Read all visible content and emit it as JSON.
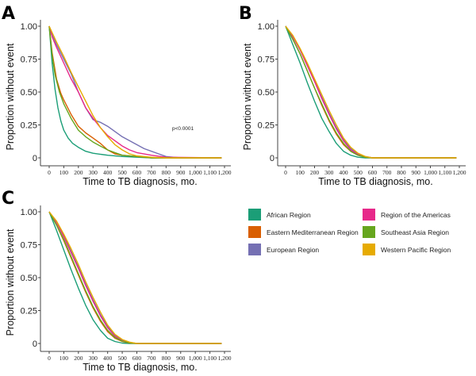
{
  "chart_data": [
    {
      "type": "line",
      "panel": "A",
      "title": "",
      "xlabel": "Time to TB diagnosis, mo.",
      "ylabel": "Proportion without event",
      "xlim": [
        0,
        1200
      ],
      "ylim": [
        0,
        1
      ],
      "x_ticks": [
        0,
        100,
        200,
        300,
        400,
        500,
        600,
        700,
        800,
        900,
        1000,
        1100,
        1200
      ],
      "x_tick_labels": [
        "0",
        "100",
        "200",
        "300",
        "400",
        "500",
        "600",
        "700",
        "800",
        "900",
        "1,000",
        "1,100",
        "1,200"
      ],
      "y_ticks": [
        0,
        0.25,
        0.5,
        0.75,
        1.0
      ],
      "y_tick_labels": [
        "0",
        "0.25",
        "0.50",
        "0.75",
        "1.00"
      ],
      "grid": false,
      "annotation": "p<0.0001",
      "series": [
        {
          "name": "African Region",
          "x": [
            0,
            20,
            40,
            60,
            80,
            100,
            130,
            160,
            200,
            250,
            300,
            400,
            500,
            600,
            700,
            1180
          ],
          "y": [
            1.0,
            0.72,
            0.52,
            0.38,
            0.28,
            0.21,
            0.15,
            0.11,
            0.08,
            0.05,
            0.035,
            0.02,
            0.01,
            0.005,
            0.0,
            0.0
          ]
        },
        {
          "name": "Eastern Mediterranean Region",
          "x": [
            0,
            20,
            50,
            80,
            100,
            150,
            200,
            250,
            300,
            350,
            400,
            450,
            500,
            600,
            700,
            1180
          ],
          "y": [
            1.0,
            0.8,
            0.6,
            0.49,
            0.44,
            0.33,
            0.24,
            0.19,
            0.15,
            0.11,
            0.06,
            0.03,
            0.02,
            0.01,
            0.0,
            0.0
          ]
        },
        {
          "name": "European Region",
          "x": [
            0,
            50,
            100,
            150,
            200,
            250,
            300,
            350,
            400,
            450,
            500,
            550,
            600,
            650,
            700,
            750,
            800,
            850,
            900,
            1180
          ],
          "y": [
            1.0,
            0.86,
            0.75,
            0.64,
            0.5,
            0.38,
            0.29,
            0.27,
            0.24,
            0.2,
            0.16,
            0.13,
            0.1,
            0.07,
            0.05,
            0.03,
            0.01,
            0.005,
            0.0,
            0.0
          ]
        },
        {
          "name": "Region of the Americas",
          "x": [
            0,
            20,
            50,
            100,
            150,
            200,
            250,
            300,
            350,
            400,
            450,
            500,
            550,
            600,
            700,
            800,
            1180
          ],
          "y": [
            1.0,
            0.92,
            0.84,
            0.72,
            0.6,
            0.5,
            0.38,
            0.3,
            0.23,
            0.17,
            0.13,
            0.09,
            0.06,
            0.04,
            0.02,
            0.005,
            0.0
          ]
        },
        {
          "name": "Southeast Asia Region",
          "x": [
            0,
            20,
            40,
            70,
            100,
            150,
            200,
            250,
            300,
            350,
            400,
            450,
            500,
            600,
            700,
            1180
          ],
          "y": [
            1.0,
            0.78,
            0.63,
            0.5,
            0.41,
            0.3,
            0.21,
            0.16,
            0.12,
            0.09,
            0.06,
            0.04,
            0.02,
            0.01,
            0.0,
            0.0
          ]
        },
        {
          "name": "Western Pacific Region",
          "x": [
            0,
            50,
            100,
            150,
            200,
            250,
            300,
            350,
            400,
            450,
            500,
            550,
            600,
            700,
            800,
            1180
          ],
          "y": [
            1.0,
            0.88,
            0.77,
            0.65,
            0.54,
            0.43,
            0.32,
            0.23,
            0.16,
            0.1,
            0.06,
            0.03,
            0.015,
            0.005,
            0.0,
            0.0
          ]
        }
      ]
    },
    {
      "type": "line",
      "panel": "B",
      "title": "",
      "xlabel": "Time to TB diagnosis, mo.",
      "ylabel": "Proportion without event",
      "xlim": [
        0,
        1200
      ],
      "ylim": [
        0,
        1
      ],
      "x_ticks": [
        0,
        100,
        200,
        300,
        400,
        500,
        600,
        700,
        800,
        900,
        1000,
        1100,
        1200
      ],
      "x_tick_labels": [
        "0",
        "100",
        "200",
        "300",
        "400",
        "500",
        "600",
        "700",
        "800",
        "900",
        "1,000",
        "1,100",
        "1,200"
      ],
      "y_ticks": [
        0,
        0.25,
        0.5,
        0.75,
        1.0
      ],
      "y_tick_labels": [
        "0",
        "0.25",
        "0.50",
        "0.75",
        "1.00"
      ],
      "grid": false,
      "series": [
        {
          "name": "African Region",
          "x": [
            0,
            50,
            100,
            150,
            200,
            250,
            300,
            350,
            400,
            450,
            500,
            550,
            600,
            1180
          ],
          "y": [
            1.0,
            0.86,
            0.72,
            0.57,
            0.43,
            0.3,
            0.2,
            0.11,
            0.05,
            0.02,
            0.005,
            0.0,
            0.0,
            0.0
          ]
        },
        {
          "name": "Eastern Mediterranean Region",
          "x": [
            0,
            50,
            100,
            150,
            200,
            250,
            300,
            350,
            400,
            450,
            500,
            550,
            600,
            1180
          ],
          "y": [
            1.0,
            0.9,
            0.79,
            0.66,
            0.53,
            0.4,
            0.28,
            0.18,
            0.1,
            0.05,
            0.02,
            0.005,
            0.0,
            0.0
          ]
        },
        {
          "name": "European Region",
          "x": [
            0,
            50,
            100,
            150,
            200,
            250,
            300,
            350,
            400,
            450,
            500,
            550,
            600,
            1180
          ],
          "y": [
            1.0,
            0.92,
            0.82,
            0.7,
            0.58,
            0.46,
            0.34,
            0.23,
            0.14,
            0.07,
            0.03,
            0.01,
            0.0,
            0.0
          ]
        },
        {
          "name": "Region of the Americas",
          "x": [
            0,
            50,
            100,
            150,
            200,
            250,
            300,
            350,
            400,
            450,
            500,
            550,
            600,
            1180
          ],
          "y": [
            1.0,
            0.92,
            0.82,
            0.7,
            0.58,
            0.45,
            0.33,
            0.22,
            0.13,
            0.06,
            0.025,
            0.008,
            0.0,
            0.0
          ]
        },
        {
          "name": "Southeast Asia Region",
          "x": [
            0,
            50,
            100,
            150,
            200,
            250,
            300,
            350,
            400,
            450,
            500,
            550,
            600,
            1180
          ],
          "y": [
            1.0,
            0.9,
            0.79,
            0.66,
            0.53,
            0.41,
            0.29,
            0.19,
            0.11,
            0.05,
            0.02,
            0.005,
            0.0,
            0.0
          ]
        },
        {
          "name": "Western Pacific Region",
          "x": [
            0,
            50,
            100,
            150,
            200,
            250,
            300,
            350,
            400,
            450,
            500,
            550,
            600,
            1180
          ],
          "y": [
            1.0,
            0.93,
            0.83,
            0.72,
            0.6,
            0.48,
            0.36,
            0.25,
            0.15,
            0.08,
            0.035,
            0.01,
            0.0,
            0.0
          ]
        }
      ]
    },
    {
      "type": "line",
      "panel": "C",
      "title": "",
      "xlabel": "Time to TB diagnosis, mo.",
      "ylabel": "Proportion without event",
      "xlim": [
        0,
        1200
      ],
      "ylim": [
        0,
        1
      ],
      "x_ticks": [
        0,
        100,
        200,
        300,
        400,
        500,
        600,
        700,
        800,
        900,
        1000,
        1100,
        1200
      ],
      "x_tick_labels": [
        "0",
        "100",
        "200",
        "300",
        "400",
        "500",
        "600",
        "700",
        "800",
        "900",
        "1,000",
        "1,100",
        "1,200"
      ],
      "y_ticks": [
        0,
        0.25,
        0.5,
        0.75,
        1.0
      ],
      "y_tick_labels": [
        "0",
        "0.25",
        "0.50",
        "0.75",
        "1.00"
      ],
      "grid": false,
      "series": [
        {
          "name": "African Region",
          "x": [
            0,
            50,
            100,
            150,
            200,
            250,
            300,
            350,
            400,
            450,
            500,
            550,
            600,
            1180
          ],
          "y": [
            1.0,
            0.86,
            0.71,
            0.56,
            0.42,
            0.29,
            0.18,
            0.1,
            0.04,
            0.015,
            0.003,
            0.0,
            0.0,
            0.0
          ]
        },
        {
          "name": "Eastern Mediterranean Region",
          "x": [
            0,
            50,
            100,
            150,
            200,
            250,
            300,
            350,
            400,
            450,
            500,
            550,
            600,
            1180
          ],
          "y": [
            1.0,
            0.9,
            0.78,
            0.65,
            0.52,
            0.39,
            0.27,
            0.17,
            0.09,
            0.04,
            0.015,
            0.003,
            0.0,
            0.0
          ]
        },
        {
          "name": "European Region",
          "x": [
            0,
            50,
            100,
            150,
            200,
            250,
            300,
            350,
            400,
            450,
            500,
            550,
            600,
            1180
          ],
          "y": [
            1.0,
            0.92,
            0.82,
            0.7,
            0.58,
            0.45,
            0.33,
            0.22,
            0.13,
            0.06,
            0.025,
            0.008,
            0.0,
            0.0
          ]
        },
        {
          "name": "Region of the Americas",
          "x": [
            0,
            50,
            100,
            150,
            200,
            250,
            300,
            350,
            400,
            450,
            500,
            550,
            600,
            1180
          ],
          "y": [
            1.0,
            0.92,
            0.81,
            0.69,
            0.57,
            0.44,
            0.32,
            0.21,
            0.12,
            0.055,
            0.02,
            0.006,
            0.0,
            0.0
          ]
        },
        {
          "name": "Southeast Asia Region",
          "x": [
            0,
            50,
            100,
            150,
            200,
            250,
            300,
            350,
            400,
            450,
            500,
            550,
            600,
            1180
          ],
          "y": [
            1.0,
            0.9,
            0.79,
            0.66,
            0.53,
            0.4,
            0.28,
            0.18,
            0.1,
            0.045,
            0.018,
            0.004,
            0.0,
            0.0
          ]
        },
        {
          "name": "Western Pacific Region",
          "x": [
            0,
            50,
            100,
            150,
            200,
            250,
            300,
            350,
            400,
            450,
            500,
            550,
            600,
            1180
          ],
          "y": [
            1.0,
            0.93,
            0.83,
            0.72,
            0.6,
            0.47,
            0.35,
            0.24,
            0.14,
            0.07,
            0.03,
            0.01,
            0.0,
            0.0
          ]
        }
      ]
    }
  ],
  "legend": {
    "placement": "right-middle",
    "entries": [
      {
        "name": "African Region",
        "color": "#1b9e77"
      },
      {
        "name": "Region of the Americas",
        "color": "#e7298a"
      },
      {
        "name": "Eastern Mediterranean Region",
        "color": "#d95f02"
      },
      {
        "name": "Southeast Asia Region",
        "color": "#66a61e"
      },
      {
        "name": "European Region",
        "color": "#7570b3"
      },
      {
        "name": "Western Pacific Region",
        "color": "#e6ab02"
      }
    ]
  },
  "series_colors": {
    "African Region": "#1b9e77",
    "Eastern Mediterranean Region": "#d95f02",
    "European Region": "#7570b3",
    "Region of the Americas": "#e7298a",
    "Southeast Asia Region": "#66a61e",
    "Western Pacific Region": "#e6ab02"
  }
}
